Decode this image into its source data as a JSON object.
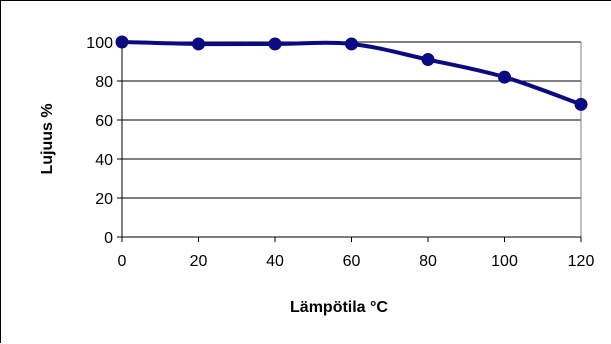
{
  "chart_data": {
    "type": "line",
    "title": "",
    "xlabel": "Lämpötila °C",
    "ylabel": "Lujuus %",
    "x": [
      0,
      20,
      40,
      60,
      80,
      100,
      120
    ],
    "series": [
      {
        "values": [
          100,
          99,
          99,
          99,
          91,
          82,
          68
        ]
      }
    ],
    "xlim": [
      0,
      120
    ],
    "ylim": [
      0,
      100
    ],
    "xticks": [
      "0",
      "20",
      "40",
      "60",
      "80",
      "100",
      "120"
    ],
    "yticks": [
      "0",
      "20",
      "40",
      "60",
      "80",
      "100"
    ],
    "grid": true,
    "legend": "none",
    "colors": {
      "line": "#0a0a82",
      "grid": "#000000"
    }
  }
}
